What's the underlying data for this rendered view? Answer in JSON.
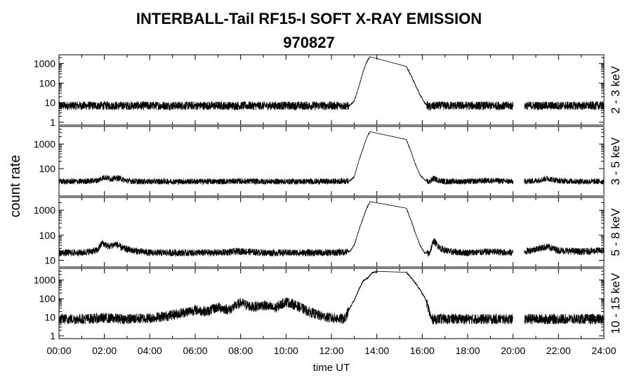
{
  "title": "INTERBALL-Tail RF15-I SOFT X-RAY EMISSION",
  "subtitle": "970827",
  "xlabel": "time UT",
  "ylabel": "count rate",
  "chart_data": {
    "type": "line",
    "title": "INTERBALL-Tail RF15-I SOFT X-RAY EMISSION",
    "subtitle": "970827",
    "xlabel": "time UT",
    "ylabel": "count rate",
    "xlim": [
      0,
      24
    ],
    "x_ticks": [
      "00:00",
      "02:00",
      "04:00",
      "06:00",
      "08:00",
      "10:00",
      "12:00",
      "14:00",
      "16:00",
      "18:00",
      "20:00",
      "22:00",
      "24:00"
    ],
    "y_scale": "log",
    "grid": false,
    "line_color": "#000000",
    "panels": [
      {
        "name": "2 - 3 keV",
        "ylim": [
          1,
          2000
        ],
        "y_ticks": [
          "1",
          "10",
          "100",
          "1000"
        ],
        "y_tick_values": [
          1,
          10,
          100,
          1000
        ],
        "baseline": 7,
        "noise": 0.22,
        "series": {
          "x": [
            0,
            1,
            2,
            3,
            4,
            5,
            6,
            7,
            8,
            9,
            10,
            11,
            12,
            12.8,
            13.0,
            13.2,
            13.4,
            13.55,
            13.7,
            15.3,
            15.5,
            15.7,
            15.9,
            16.1,
            16.3,
            16.6,
            17,
            18,
            19,
            20,
            20.3,
            20.5,
            21,
            22,
            23,
            24
          ],
          "y": [
            7,
            7,
            7,
            7,
            7,
            7,
            7,
            7,
            7,
            7,
            7,
            7,
            7,
            7,
            12,
            60,
            400,
            1200,
            2200,
            700,
            250,
            80,
            25,
            10,
            6,
            7,
            7,
            7,
            7,
            7,
            null,
            7,
            7,
            7,
            7,
            7
          ]
        }
      },
      {
        "name": "3 - 5 keV",
        "ylim": [
          10,
          4000
        ],
        "y_ticks": [
          "100",
          "1000"
        ],
        "y_tick_values": [
          100,
          1000
        ],
        "baseline": 30,
        "noise": 0.12,
        "series": {
          "x": [
            0,
            1,
            1.7,
            2.0,
            2.3,
            2.6,
            3.0,
            3.5,
            4,
            5,
            6,
            7,
            8,
            9,
            10,
            11,
            12,
            12.8,
            13.0,
            13.2,
            13.4,
            13.55,
            13.7,
            15.3,
            15.5,
            15.7,
            15.9,
            16.1,
            16.3,
            16.5,
            16.8,
            17,
            18,
            19,
            20,
            20.3,
            20.5,
            21,
            21.5,
            22,
            23,
            24
          ],
          "y": [
            30,
            30,
            33,
            45,
            38,
            42,
            32,
            30,
            30,
            30,
            30,
            30,
            31,
            30,
            30,
            30,
            30,
            32,
            45,
            200,
            700,
            1800,
            3300,
            1500,
            500,
            150,
            55,
            35,
            28,
            40,
            32,
            30,
            30,
            33,
            30,
            null,
            30,
            32,
            40,
            32,
            30,
            30
          ]
        }
      },
      {
        "name": "5 - 8 keV",
        "ylim": [
          7,
          2500
        ],
        "y_ticks": [
          "10",
          "100",
          "1000"
        ],
        "y_tick_values": [
          10,
          100,
          1000
        ],
        "baseline": 20,
        "noise": 0.14,
        "series": {
          "x": [
            0,
            1,
            1.7,
            1.9,
            2.2,
            2.5,
            2.8,
            3.2,
            4,
            5,
            6,
            7,
            8,
            9,
            10,
            11,
            12,
            12.8,
            13.0,
            13.2,
            13.4,
            13.55,
            13.7,
            15.3,
            15.5,
            15.7,
            15.9,
            16.1,
            16.3,
            16.5,
            16.8,
            17.2,
            18,
            19,
            20,
            20.3,
            20.5,
            21,
            21.5,
            22,
            23,
            24
          ],
          "y": [
            20,
            20,
            25,
            50,
            35,
            45,
            30,
            25,
            20,
            20,
            20,
            20,
            23,
            20,
            20,
            20,
            20,
            22,
            40,
            150,
            500,
            1200,
            2200,
            1200,
            400,
            120,
            40,
            20,
            18,
            60,
            30,
            22,
            20,
            22,
            20,
            null,
            22,
            28,
            35,
            25,
            22,
            25
          ]
        }
      },
      {
        "name": "10 - 15 keV",
        "ylim": [
          1,
          3000
        ],
        "y_ticks": [
          "1",
          "10",
          "100",
          "1000"
        ],
        "y_tick_values": [
          1,
          10,
          100,
          1000
        ],
        "baseline": 8,
        "noise": 0.28,
        "series": {
          "x": [
            0,
            1,
            2,
            3,
            4,
            4.8,
            5.5,
            6,
            6.5,
            7,
            7.5,
            8,
            8.5,
            9,
            9.5,
            10,
            10.5,
            11,
            11.5,
            12,
            12.6,
            12.8,
            13.0,
            13.2,
            13.4,
            13.6,
            13.8,
            14.0,
            15.3,
            15.5,
            15.7,
            15.9,
            16.1,
            16.2,
            16.4,
            17,
            18,
            19,
            20,
            20.3,
            20.5,
            21,
            22,
            23,
            24
          ],
          "y": [
            8,
            8,
            9,
            8,
            9,
            12,
            18,
            25,
            20,
            35,
            25,
            60,
            35,
            45,
            30,
            70,
            40,
            20,
            12,
            9,
            8,
            30,
            80,
            300,
            900,
            1300,
            2500,
            2800,
            2500,
            1400,
            700,
            300,
            120,
            60,
            8,
            8,
            8,
            8,
            8,
            null,
            8,
            8,
            8,
            8,
            8
          ]
        }
      }
    ]
  }
}
